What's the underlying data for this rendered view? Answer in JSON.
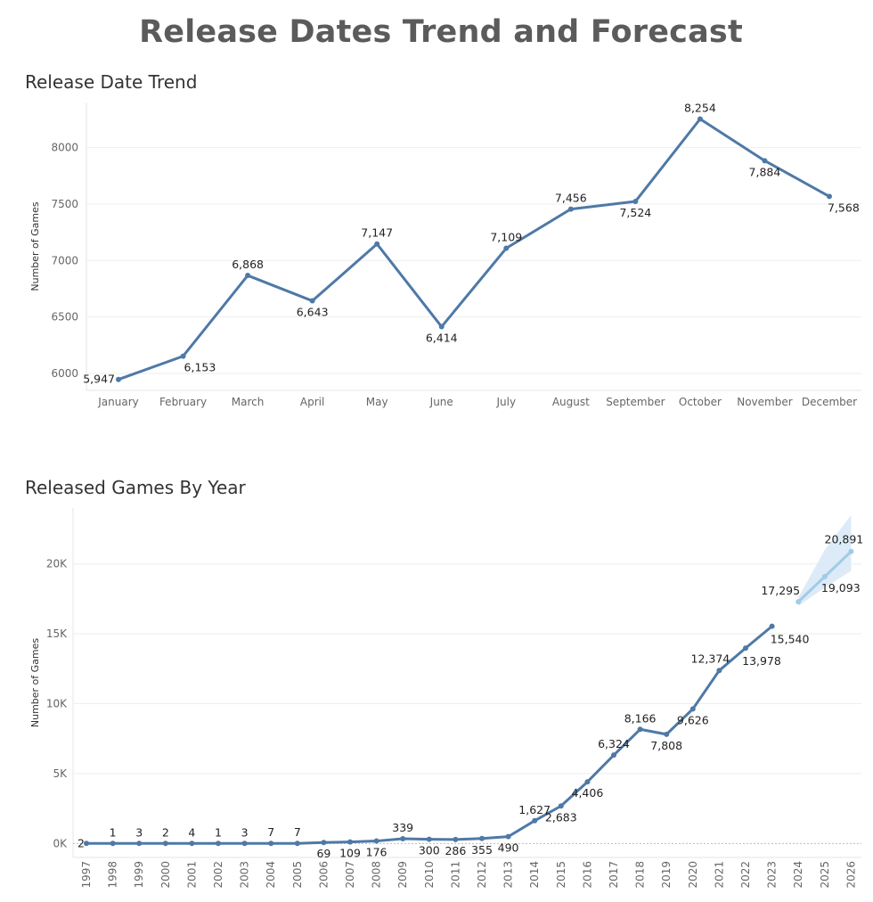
{
  "page_title": "Release Dates Trend and Forecast",
  "chart_data": [
    {
      "type": "line",
      "title": "Release Date Trend",
      "xlabel": "",
      "ylabel": "Number of Games",
      "ylim": [
        5850,
        8400
      ],
      "yticks": [
        6000,
        6500,
        7000,
        7500,
        8000
      ],
      "categories": [
        "January",
        "February",
        "March",
        "April",
        "May",
        "June",
        "July",
        "August",
        "September",
        "October",
        "November",
        "December"
      ],
      "values": [
        5947,
        6153,
        6868,
        6643,
        7147,
        6414,
        7109,
        7456,
        7524,
        8254,
        7884,
        7568
      ],
      "data_labels": [
        "5,947",
        "6,153",
        "6,868",
        "6,643",
        "7,147",
        "6,414",
        "7,109",
        "7,456",
        "7,524",
        "8,254",
        "7,884",
        "7,568"
      ],
      "color": "#4e79a7",
      "grid": true
    },
    {
      "type": "line",
      "title": "Released Games By Year",
      "xlabel": "",
      "ylabel": "Number of Games",
      "ylim": [
        -1000,
        24000
      ],
      "yticks": [
        0,
        5000,
        10000,
        15000,
        20000
      ],
      "ytick_labels": [
        "0K",
        "5K",
        "10K",
        "15K",
        "20K"
      ],
      "categories": [
        "1997",
        "1998",
        "1999",
        "2000",
        "2001",
        "2002",
        "2003",
        "2004",
        "2005",
        "2006",
        "2007",
        "2008",
        "2009",
        "2010",
        "2011",
        "2012",
        "2013",
        "2014",
        "2015",
        "2016",
        "2017",
        "2018",
        "2019",
        "2020",
        "2021",
        "2022",
        "2023"
      ],
      "values": [
        2,
        1,
        3,
        2,
        4,
        1,
        3,
        7,
        7,
        69,
        109,
        176,
        339,
        300,
        286,
        355,
        490,
        1627,
        2683,
        4406,
        6324,
        8166,
        7808,
        9626,
        12374,
        13978,
        15540
      ],
      "data_labels": [
        "2",
        "1",
        "3",
        "2",
        "4",
        "1",
        "3",
        "7",
        "7",
        "69",
        "109",
        "176",
        "339",
        "300",
        "286",
        "355",
        "490",
        "1,627",
        "2,683",
        "4,406",
        "6,324",
        "8,166",
        "7,808",
        "9,626",
        "12,374",
        "13,978",
        "15,540"
      ],
      "label_positions": [
        "left",
        "above",
        "above",
        "above",
        "above",
        "above",
        "above",
        "above",
        "above",
        "below",
        "below",
        "below",
        "above",
        "below",
        "below",
        "below",
        "below",
        "above",
        "below",
        "below",
        "above",
        "above",
        "below",
        "below",
        "above",
        "below",
        "below"
      ],
      "forecast": {
        "categories": [
          "2024",
          "2025",
          "2026"
        ],
        "values": [
          17295,
          19093,
          20891
        ],
        "data_labels": [
          "17,295",
          "19,093",
          "20,891"
        ],
        "label_positions": [
          "above",
          "below",
          "above"
        ],
        "band_low": [
          17000,
          18300,
          19500
        ],
        "band_high": [
          17600,
          21000,
          23500
        ],
        "color": "#a0cbe8",
        "band_color": "#d6e8f6"
      },
      "color": "#4e79a7",
      "grid": true
    }
  ]
}
